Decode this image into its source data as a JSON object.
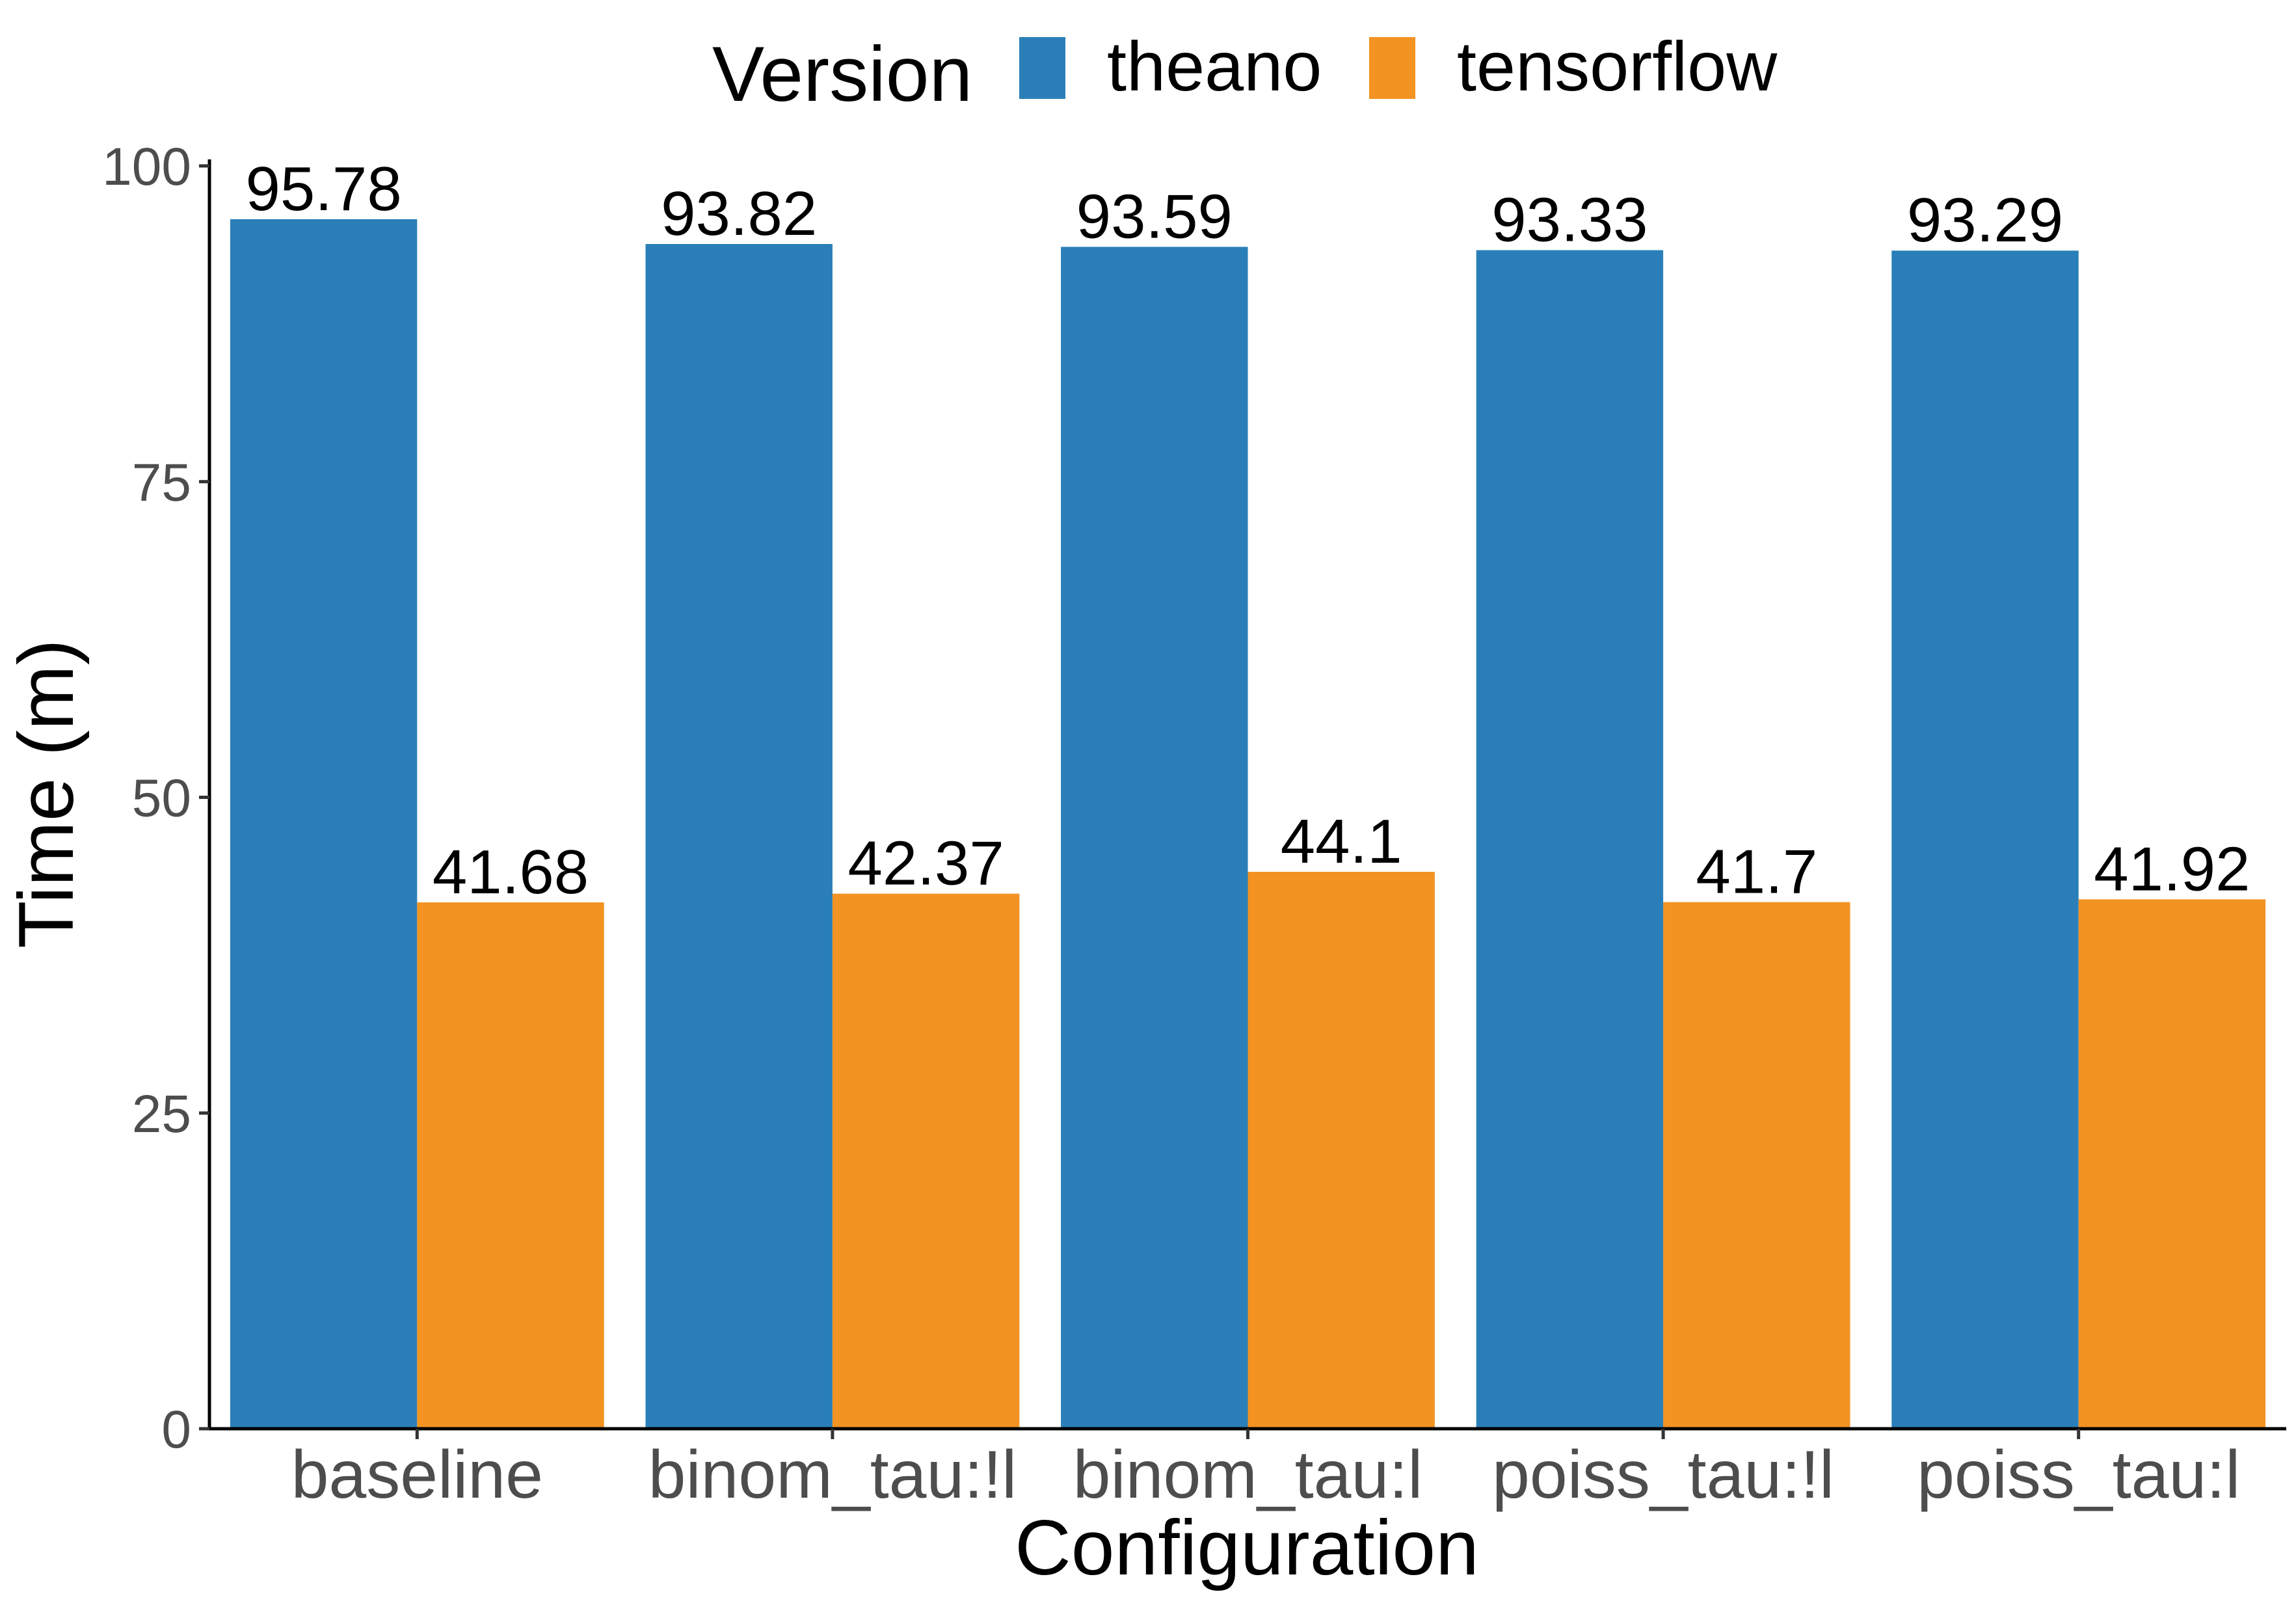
{
  "chart_data": {
    "type": "bar",
    "title": "",
    "xlabel": "Configuration",
    "ylabel": "Time (m)",
    "ylim": [
      0,
      100
    ],
    "yticks": [
      0,
      25,
      50,
      75,
      100
    ],
    "grid": false,
    "legend": {
      "title": "Version",
      "position": "top"
    },
    "categories": [
      "baseline",
      "binom_tau:!l",
      "binom_tau:l",
      "poiss_tau:!l",
      "poiss_tau:l"
    ],
    "series": [
      {
        "name": "theano",
        "color": "#2A7FB8",
        "values": [
          95.78,
          93.82,
          93.59,
          93.33,
          93.29
        ],
        "labels": [
          "95.78",
          "93.82",
          "93.59",
          "93.33",
          "93.29"
        ]
      },
      {
        "name": "tensorflow",
        "color": "#F39322",
        "values": [
          41.68,
          42.37,
          44.1,
          41.7,
          41.92
        ],
        "labels": [
          "41.68",
          "42.37",
          "44.1",
          "41.7",
          "41.92"
        ]
      }
    ]
  }
}
